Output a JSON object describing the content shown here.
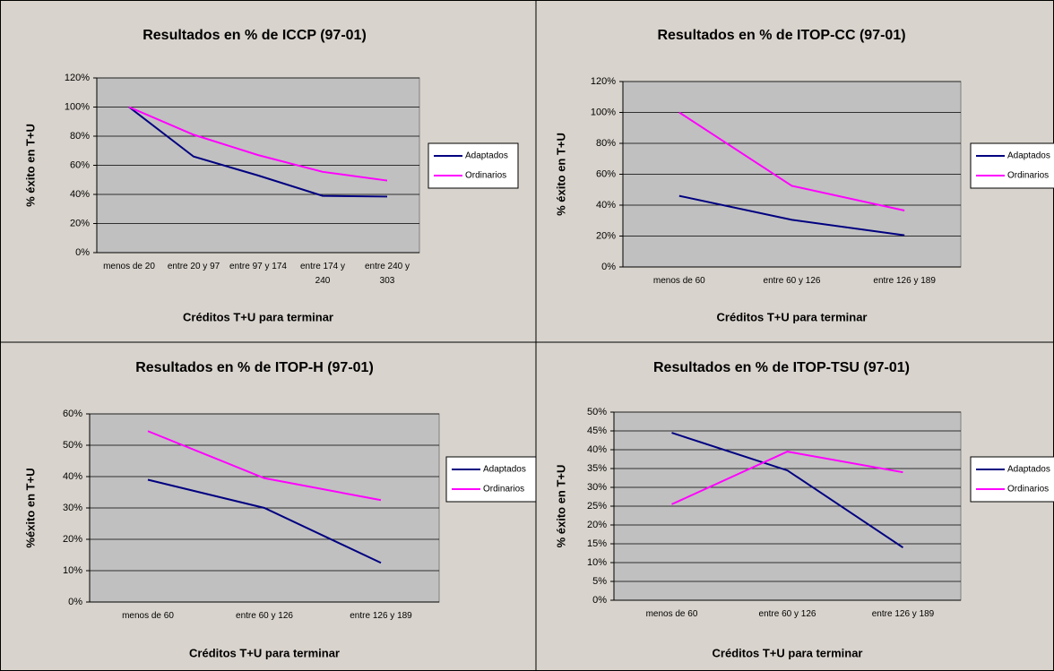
{
  "chart_data": [
    {
      "type": "line",
      "title": "Resultados en % de ICCP (97-01)",
      "x_label": "Créditos T+U para terminar",
      "y_label": "% éxito en T+U",
      "categories": [
        "menos de 20",
        "entre 20 y 97",
        "entre 97 y 174",
        "entre 174 y 240",
        "entre 240 y 303"
      ],
      "series": [
        {
          "name": "Adaptados",
          "color": "#000080",
          "values": [
            100,
            66,
            53,
            39,
            38.5
          ]
        },
        {
          "name": "Ordinarios",
          "color": "#ff00ff",
          "values": [
            100,
            81,
            67,
            55.5,
            49.5
          ]
        }
      ],
      "ylim": [
        0,
        120
      ],
      "yticks": [
        {
          "value": 0,
          "label": "0%"
        },
        {
          "value": 20,
          "label": "20%"
        },
        {
          "value": 40,
          "label": "40%"
        },
        {
          "value": 60,
          "label": "60%"
        },
        {
          "value": 80,
          "label": "80%"
        },
        {
          "value": 100,
          "label": "100%"
        },
        {
          "value": 120,
          "label": "120%"
        }
      ],
      "grid": true,
      "legend": "right"
    },
    {
      "type": "line",
      "title": "Resultados en % de ITOP-CC (97-01)",
      "x_label": "Créditos T+U para terminar",
      "y_label": "% éxito en T+U",
      "categories": [
        "menos de 60",
        "entre 60 y 126",
        "entre 126 y 189"
      ],
      "series": [
        {
          "name": "Adaptados",
          "color": "#000080",
          "values": [
            46,
            30.5,
            20.5
          ]
        },
        {
          "name": "Ordinarios",
          "color": "#ff00ff",
          "values": [
            100,
            52.5,
            36.5
          ]
        }
      ],
      "ylim": [
        0,
        120
      ],
      "yticks": [
        {
          "value": 0,
          "label": "0%"
        },
        {
          "value": 20,
          "label": "20%"
        },
        {
          "value": 40,
          "label": "40%"
        },
        {
          "value": 60,
          "label": "60%"
        },
        {
          "value": 80,
          "label": "80%"
        },
        {
          "value": 100,
          "label": "100%"
        },
        {
          "value": 120,
          "label": "120%"
        }
      ],
      "grid": true,
      "legend": "right"
    },
    {
      "type": "line",
      "title": "Resultados en % de ITOP-H (97-01)",
      "x_label": "Créditos T+U para terminar",
      "y_label": "%éxito en T+U",
      "categories": [
        "menos de 60",
        "entre 60 y 126",
        "entre 126 y 189"
      ],
      "series": [
        {
          "name": "Adaptados",
          "color": "#000080",
          "values": [
            39,
            30,
            12.5
          ]
        },
        {
          "name": "Ordinarios",
          "color": "#ff00ff",
          "values": [
            54.5,
            39.5,
            32.5
          ]
        }
      ],
      "ylim": [
        0,
        60
      ],
      "yticks": [
        {
          "value": 0,
          "label": "0%"
        },
        {
          "value": 10,
          "label": "10%"
        },
        {
          "value": 20,
          "label": "20%"
        },
        {
          "value": 30,
          "label": "30%"
        },
        {
          "value": 40,
          "label": "40%"
        },
        {
          "value": 50,
          "label": "50%"
        },
        {
          "value": 60,
          "label": "60%"
        }
      ],
      "grid": true,
      "legend": "right"
    },
    {
      "type": "line",
      "title": "Resultados en % de ITOP-TSU (97-01)",
      "x_label": "Créditos T+U para terminar",
      "y_label": "% éxito en T+U",
      "categories": [
        "menos de 60",
        "entre 60 y 126",
        "entre 126 y 189"
      ],
      "series": [
        {
          "name": "Adaptados",
          "color": "#000080",
          "values": [
            44.5,
            34.5,
            14
          ]
        },
        {
          "name": "Ordinarios",
          "color": "#ff00ff",
          "values": [
            25.5,
            39.5,
            34
          ]
        }
      ],
      "ylim": [
        0,
        50
      ],
      "yticks": [
        {
          "value": 0,
          "label": "0%"
        },
        {
          "value": 5,
          "label": "5%"
        },
        {
          "value": 10,
          "label": "10%"
        },
        {
          "value": 15,
          "label": "15%"
        },
        {
          "value": 20,
          "label": "20%"
        },
        {
          "value": 25,
          "label": "25%"
        },
        {
          "value": 30,
          "label": "30%"
        },
        {
          "value": 35,
          "label": "35%"
        },
        {
          "value": 40,
          "label": "40%"
        },
        {
          "value": 45,
          "label": "45%"
        },
        {
          "value": 50,
          "label": "50%"
        }
      ],
      "grid": true,
      "legend": "right"
    }
  ]
}
